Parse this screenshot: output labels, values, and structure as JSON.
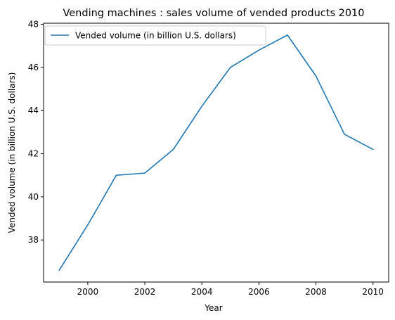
{
  "chart_data": {
    "type": "line",
    "title": "Vending machines : sales volume of vended products 2010",
    "xlabel": "Year",
    "ylabel": "Vended volume (in billion U.S. dollars)",
    "x": [
      1999,
      2000,
      2001,
      2002,
      2003,
      2004,
      2005,
      2006,
      2007,
      2008,
      2009,
      2010
    ],
    "series": [
      {
        "name": "Vended volume (in billion U.S. dollars)",
        "color": "#1f77b4",
        "values": [
          36.6,
          38.7,
          41.0,
          41.1,
          42.2,
          44.2,
          46.0,
          46.8,
          47.5,
          45.6,
          42.9,
          42.2
        ]
      }
    ],
    "xlim": [
      1998.45,
      2010.55
    ],
    "ylim": [
      36.05,
      48.05
    ],
    "xticks": [
      2000,
      2002,
      2004,
      2006,
      2008,
      2010
    ],
    "yticks": [
      38,
      40,
      42,
      44,
      46,
      48
    ],
    "grid": false,
    "legend_position": "upper-left"
  }
}
